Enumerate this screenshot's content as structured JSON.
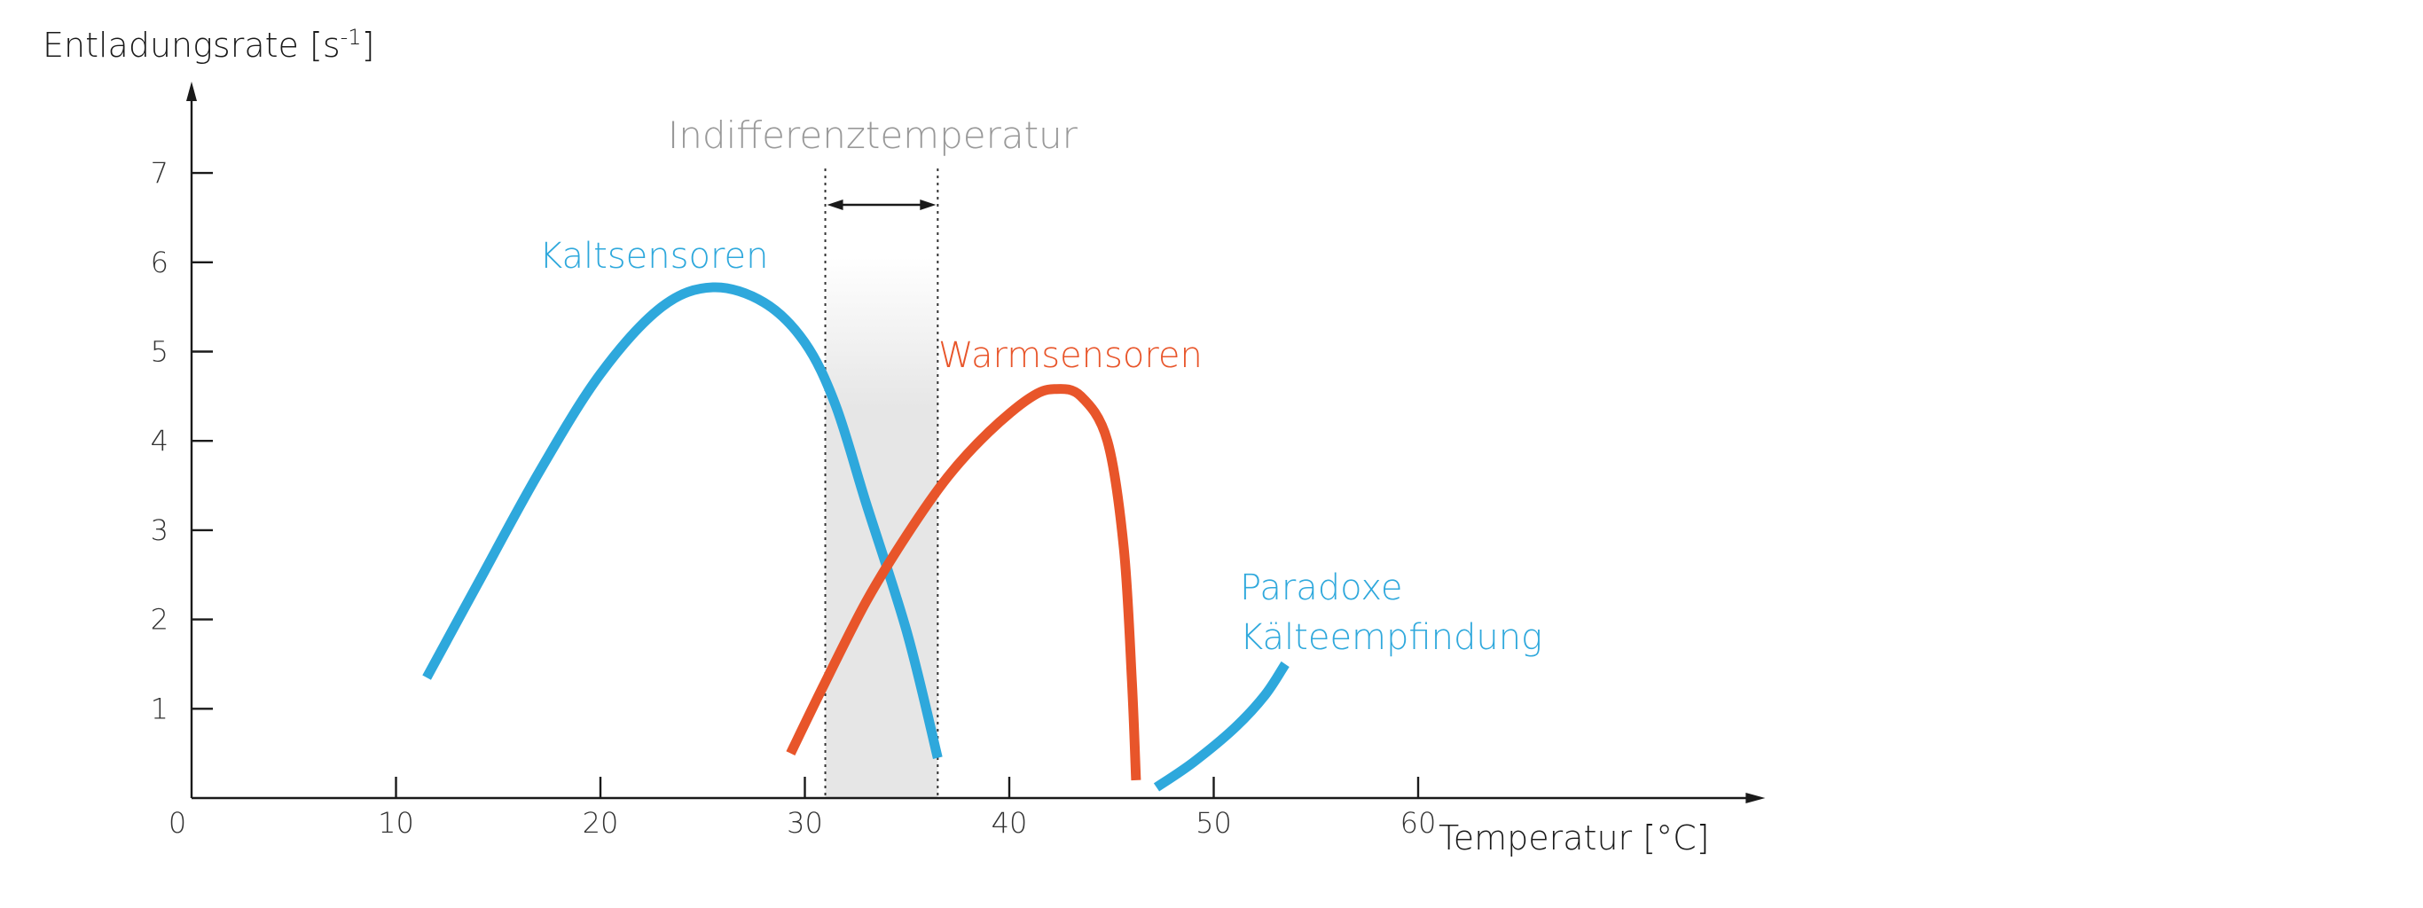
{
  "chart_data": {
    "type": "line",
    "ylabel_text": "Entladungsrate [s",
    "ylabel_sup": "-1",
    "ylabel_close": "]",
    "xlabel": "Temperatur [°C]",
    "x_origin_label": "0",
    "xlim": [
      0,
      67
    ],
    "ylim": [
      0,
      7.9
    ],
    "x_ticks": [
      10,
      20,
      30,
      40,
      50,
      60
    ],
    "y_ticks": [
      1,
      2,
      3,
      4,
      5,
      6,
      7
    ],
    "band": {
      "label": "Indifferenztemperatur",
      "x_start": 31,
      "x_end": 36.5,
      "color": "#e6e6e6",
      "label_color": "#999999"
    },
    "series": [
      {
        "name": "Kaltsensoren",
        "color": "#2ea8dc",
        "x": [
          11.5,
          14,
          17,
          20,
          23,
          25.5,
          28,
          30,
          31.5,
          33,
          35,
          36.5
        ],
        "y": [
          1.35,
          2.4,
          3.65,
          4.75,
          5.5,
          5.72,
          5.55,
          5.1,
          4.4,
          3.3,
          1.85,
          0.45
        ]
      },
      {
        "name": "Warmsensoren",
        "color": "#e8552a",
        "x": [
          29.3,
          31,
          33,
          35,
          37,
          39,
          41,
          42.2,
          43.5,
          44.8,
          45.6,
          46,
          46.2
        ],
        "y": [
          0.5,
          1.3,
          2.2,
          2.95,
          3.6,
          4.1,
          4.48,
          4.58,
          4.5,
          4.0,
          2.8,
          1.3,
          0.2
        ]
      },
      {
        "name": "Paradoxe Kälteempfindung",
        "name_lines": [
          "Paradoxe",
          "Kälteempfindung"
        ],
        "color": "#2ea8dc",
        "x": [
          47.2,
          49,
          51,
          52.5,
          53.5
        ],
        "y": [
          0.12,
          0.4,
          0.78,
          1.15,
          1.5
        ]
      }
    ]
  }
}
